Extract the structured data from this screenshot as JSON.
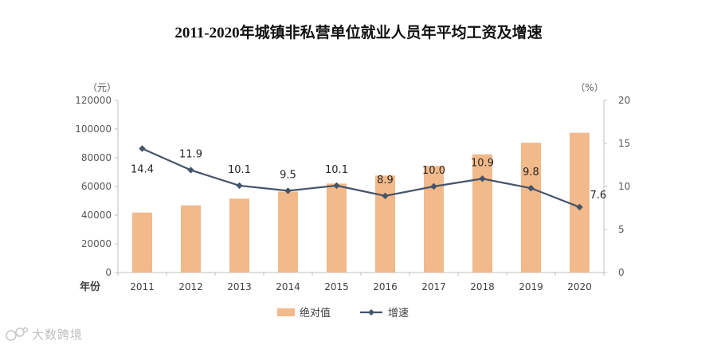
{
  "chart_data": {
    "type": "bar",
    "title": "2011-2020年城镇非私营单位就业人员年平均工资及增速",
    "categories": [
      "2011",
      "2012",
      "2013",
      "2014",
      "2015",
      "2016",
      "2017",
      "2018",
      "2019",
      "2020"
    ],
    "xlabel": "年份",
    "series": [
      {
        "name": "绝对值",
        "type": "bar",
        "axis": "left",
        "color": "#F2B98A",
        "values": [
          41800,
          46800,
          51500,
          56400,
          62000,
          67600,
          74300,
          82400,
          90500,
          97400
        ]
      },
      {
        "name": "增速",
        "type": "line",
        "axis": "right",
        "color": "#44546A",
        "values": [
          14.4,
          11.9,
          10.1,
          9.5,
          10.1,
          8.9,
          10.0,
          10.9,
          9.8,
          7.6
        ],
        "labels": [
          "14.4",
          "11.9",
          "10.1",
          "9.5",
          "10.1",
          "8.9",
          "10.0",
          "10.9",
          "9.8",
          "7.6"
        ]
      }
    ],
    "y_left": {
      "unit": "（元）",
      "ylim": [
        0,
        120000
      ],
      "ticks": [
        "0",
        "20000",
        "40000",
        "60000",
        "80000",
        "100000",
        "120000"
      ]
    },
    "y_right": {
      "unit": "（%）",
      "ylim": [
        0,
        20
      ],
      "ticks": [
        "0",
        "5",
        "10",
        "15",
        "20"
      ]
    },
    "legend": {
      "position": "bottom",
      "items": [
        "绝对值",
        "增速"
      ]
    },
    "grid": false
  },
  "watermark": {
    "text": "大数跨境"
  }
}
